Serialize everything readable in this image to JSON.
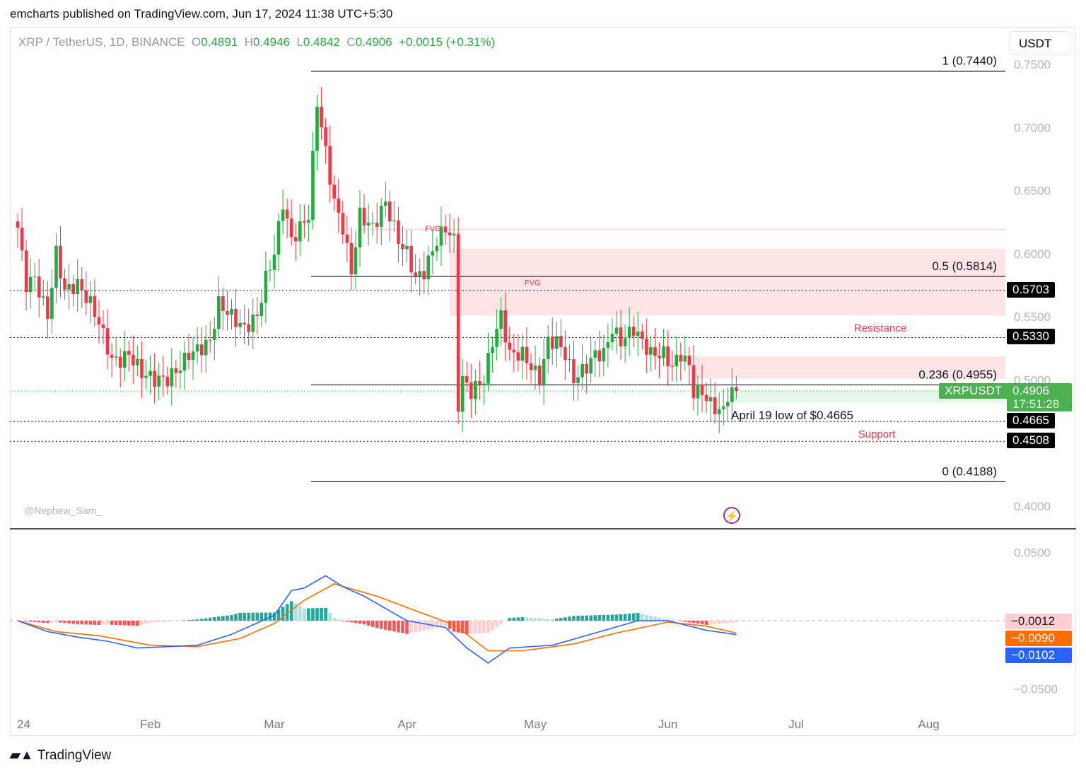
{
  "header": {
    "published": "emcharts published on TradingView.com, Jun 17, 2024 11:38 UTC+5:30"
  },
  "legend": {
    "symbol": "XRP / TetherUS, 1D, BINANCE",
    "o_label": "O",
    "o": "0.4891",
    "h_label": "H",
    "h": "0.4946",
    "l_label": "L",
    "l": "0.4842",
    "c_label": "C",
    "c": "0.4906",
    "change": "+0.0015 (+0.31%)"
  },
  "currency": "USDT",
  "watermark": "@Nephew_Sam_",
  "brand": "TradingView",
  "colors": {
    "up": "#22ab3e",
    "down": "#f23645",
    "zone": "#fde4e6",
    "green_zone": "#e6f7ea",
    "macd": "#2962ff",
    "signal": "#ff6d00"
  },
  "chart_data": {
    "type": "candlestick",
    "price_axis": {
      "range": [
        0.37,
        0.76
      ],
      "ticks": [
        "0.7500",
        "0.7000",
        "0.6500",
        "0.6000",
        "0.5500",
        "0.5000",
        "0.4000"
      ]
    },
    "time_axis": {
      "ticks": [
        "24",
        "Feb",
        "Mar",
        "Apr",
        "May",
        "Jun",
        "Jul",
        "Aug"
      ]
    },
    "closes": [
      [
        "2024-01-01",
        0.62
      ],
      [
        "2024-01-03",
        0.575
      ],
      [
        "2024-01-05",
        0.58
      ],
      [
        "2024-01-08",
        0.55
      ],
      [
        "2024-01-10",
        0.6
      ],
      [
        "2024-01-12",
        0.57
      ],
      [
        "2024-01-15",
        0.575
      ],
      [
        "2024-01-18",
        0.56
      ],
      [
        "2024-01-20",
        0.545
      ],
      [
        "2024-01-23",
        0.515
      ],
      [
        "2024-01-25",
        0.515
      ],
      [
        "2024-01-27",
        0.52
      ],
      [
        "2024-01-30",
        0.505
      ],
      [
        "2024-02-02",
        0.5
      ],
      [
        "2024-02-05",
        0.5
      ],
      [
        "2024-02-08",
        0.51
      ],
      [
        "2024-02-10",
        0.52
      ],
      [
        "2024-02-13",
        0.525
      ],
      [
        "2024-02-15",
        0.53
      ],
      [
        "2024-02-17",
        0.56
      ],
      [
        "2024-02-20",
        0.55
      ],
      [
        "2024-02-23",
        0.54
      ],
      [
        "2024-02-26",
        0.55
      ],
      [
        "2024-02-28",
        0.58
      ],
      [
        "2024-03-01",
        0.6
      ],
      [
        "2024-03-03",
        0.64
      ],
      [
        "2024-03-05",
        0.61
      ],
      [
        "2024-03-07",
        0.62
      ],
      [
        "2024-03-09",
        0.63
      ],
      [
        "2024-03-11",
        0.72
      ],
      [
        "2024-03-12",
        0.7
      ],
      [
        "2024-03-13",
        0.68
      ],
      [
        "2024-03-15",
        0.64
      ],
      [
        "2024-03-17",
        0.62
      ],
      [
        "2024-03-19",
        0.585
      ],
      [
        "2024-03-21",
        0.63
      ],
      [
        "2024-03-24",
        0.62
      ],
      [
        "2024-03-27",
        0.64
      ],
      [
        "2024-03-30",
        0.61
      ],
      [
        "2024-04-01",
        0.6
      ],
      [
        "2024-04-03",
        0.58
      ],
      [
        "2024-04-05",
        0.585
      ],
      [
        "2024-04-08",
        0.61
      ],
      [
        "2024-04-10",
        0.62
      ],
      [
        "2024-04-12",
        0.61
      ],
      [
        "2024-04-13",
        0.48
      ],
      [
        "2024-04-14",
        0.5
      ],
      [
        "2024-04-16",
        0.49
      ],
      [
        "2024-04-19",
        0.5
      ],
      [
        "2024-04-21",
        0.53
      ],
      [
        "2024-04-23",
        0.55
      ],
      [
        "2024-04-25",
        0.52
      ],
      [
        "2024-04-28",
        0.52
      ],
      [
        "2024-04-30",
        0.51
      ],
      [
        "2024-05-02",
        0.5
      ],
      [
        "2024-05-04",
        0.53
      ],
      [
        "2024-05-06",
        0.53
      ],
      [
        "2024-05-08",
        0.52
      ],
      [
        "2024-05-10",
        0.5
      ],
      [
        "2024-05-13",
        0.51
      ],
      [
        "2024-05-15",
        0.52
      ],
      [
        "2024-05-17",
        0.52
      ],
      [
        "2024-05-19",
        0.54
      ],
      [
        "2024-05-21",
        0.53
      ],
      [
        "2024-05-24",
        0.54
      ],
      [
        "2024-05-26",
        0.53
      ],
      [
        "2024-05-28",
        0.52
      ],
      [
        "2024-05-31",
        0.52
      ],
      [
        "2024-06-02",
        0.51
      ],
      [
        "2024-06-04",
        0.52
      ],
      [
        "2024-06-06",
        0.51
      ],
      [
        "2024-06-07",
        0.49
      ],
      [
        "2024-06-09",
        0.49
      ],
      [
        "2024-06-11",
        0.48
      ],
      [
        "2024-06-13",
        0.475
      ],
      [
        "2024-06-14",
        0.475
      ],
      [
        "2024-06-15",
        0.488
      ],
      [
        "2024-06-17",
        0.4906
      ]
    ],
    "fib_levels": [
      {
        "label": "1 (0.7440)",
        "value": 0.744
      },
      {
        "label": "0.5 (0.5814)",
        "value": 0.5814
      },
      {
        "label": "0.236 (0.4955)",
        "value": 0.4955
      },
      {
        "label": "0 (0.4188)",
        "value": 0.4188
      }
    ],
    "levels": [
      {
        "label": "0.5703",
        "value": 0.5703
      },
      {
        "label": "0.5330",
        "value": 0.533
      },
      {
        "label": "0.4665",
        "value": 0.4665
      },
      {
        "label": "0.4508",
        "value": 0.4508
      }
    ],
    "zones": [
      {
        "label": "FVG",
        "from": 0.618,
        "to": 0.6195,
        "start": "2024-03-20"
      },
      {
        "label": "FVG",
        "from": 0.5505,
        "to": 0.6035,
        "start": "2024-04-11"
      },
      {
        "label": "",
        "from": 0.5005,
        "to": 0.518,
        "start": "2024-06-07"
      }
    ],
    "annotations": {
      "resistance": "Resistance",
      "support": "Support",
      "april_low": "April 19 low of $0.4665"
    },
    "last_price": {
      "symbol": "XRPUSDT",
      "price": "0.4906",
      "countdown": "17:51:28"
    },
    "macd": {
      "axis_ticks": [
        "0.0500",
        "-0.0500"
      ],
      "range": [
        -0.055,
        0.055
      ],
      "macd": [
        [
          "2024-01-01",
          0
        ],
        [
          "2024-01-08",
          -0.008
        ],
        [
          "2024-01-15",
          -0.012
        ],
        [
          "2024-01-22",
          -0.015
        ],
        [
          "2024-01-29",
          -0.02
        ],
        [
          "2024-02-05",
          -0.019
        ],
        [
          "2024-02-12",
          -0.018
        ],
        [
          "2024-02-20",
          -0.01
        ],
        [
          "2024-03-01",
          0.004
        ],
        [
          "2024-03-05",
          0.022
        ],
        [
          "2024-03-08",
          0.024
        ],
        [
          "2024-03-13",
          0.033
        ],
        [
          "2024-03-17",
          0.025
        ],
        [
          "2024-03-22",
          0.018
        ],
        [
          "2024-04-01",
          0.0
        ],
        [
          "2024-04-10",
          -0.005
        ],
        [
          "2024-04-15",
          -0.02
        ],
        [
          "2024-04-20",
          -0.031
        ],
        [
          "2024-04-25",
          -0.02
        ],
        [
          "2024-05-05",
          -0.018
        ],
        [
          "2024-05-15",
          -0.009
        ],
        [
          "2024-05-25",
          0.0
        ],
        [
          "2024-06-01",
          0.0
        ],
        [
          "2024-06-10",
          -0.007
        ],
        [
          "2024-06-17",
          -0.0102
        ]
      ],
      "signal": [
        [
          "2024-01-01",
          0
        ],
        [
          "2024-01-10",
          -0.008
        ],
        [
          "2024-01-20",
          -0.011
        ],
        [
          "2024-02-01",
          -0.018
        ],
        [
          "2024-02-12",
          -0.019
        ],
        [
          "2024-02-22",
          -0.013
        ],
        [
          "2024-03-01",
          -0.002
        ],
        [
          "2024-03-08",
          0.015
        ],
        [
          "2024-03-15",
          0.027
        ],
        [
          "2024-03-25",
          0.018
        ],
        [
          "2024-04-05",
          0.005
        ],
        [
          "2024-04-12",
          -0.003
        ],
        [
          "2024-04-20",
          -0.022
        ],
        [
          "2024-04-28",
          -0.022
        ],
        [
          "2024-05-10",
          -0.017
        ],
        [
          "2024-05-20",
          -0.009
        ],
        [
          "2024-06-01",
          -0.001
        ],
        [
          "2024-06-10",
          -0.004
        ],
        [
          "2024-06-17",
          -0.009
        ]
      ],
      "labels": {
        "histogram": "-0.0012",
        "signal": "-0.0090",
        "macd": "-0.0102"
      }
    }
  }
}
